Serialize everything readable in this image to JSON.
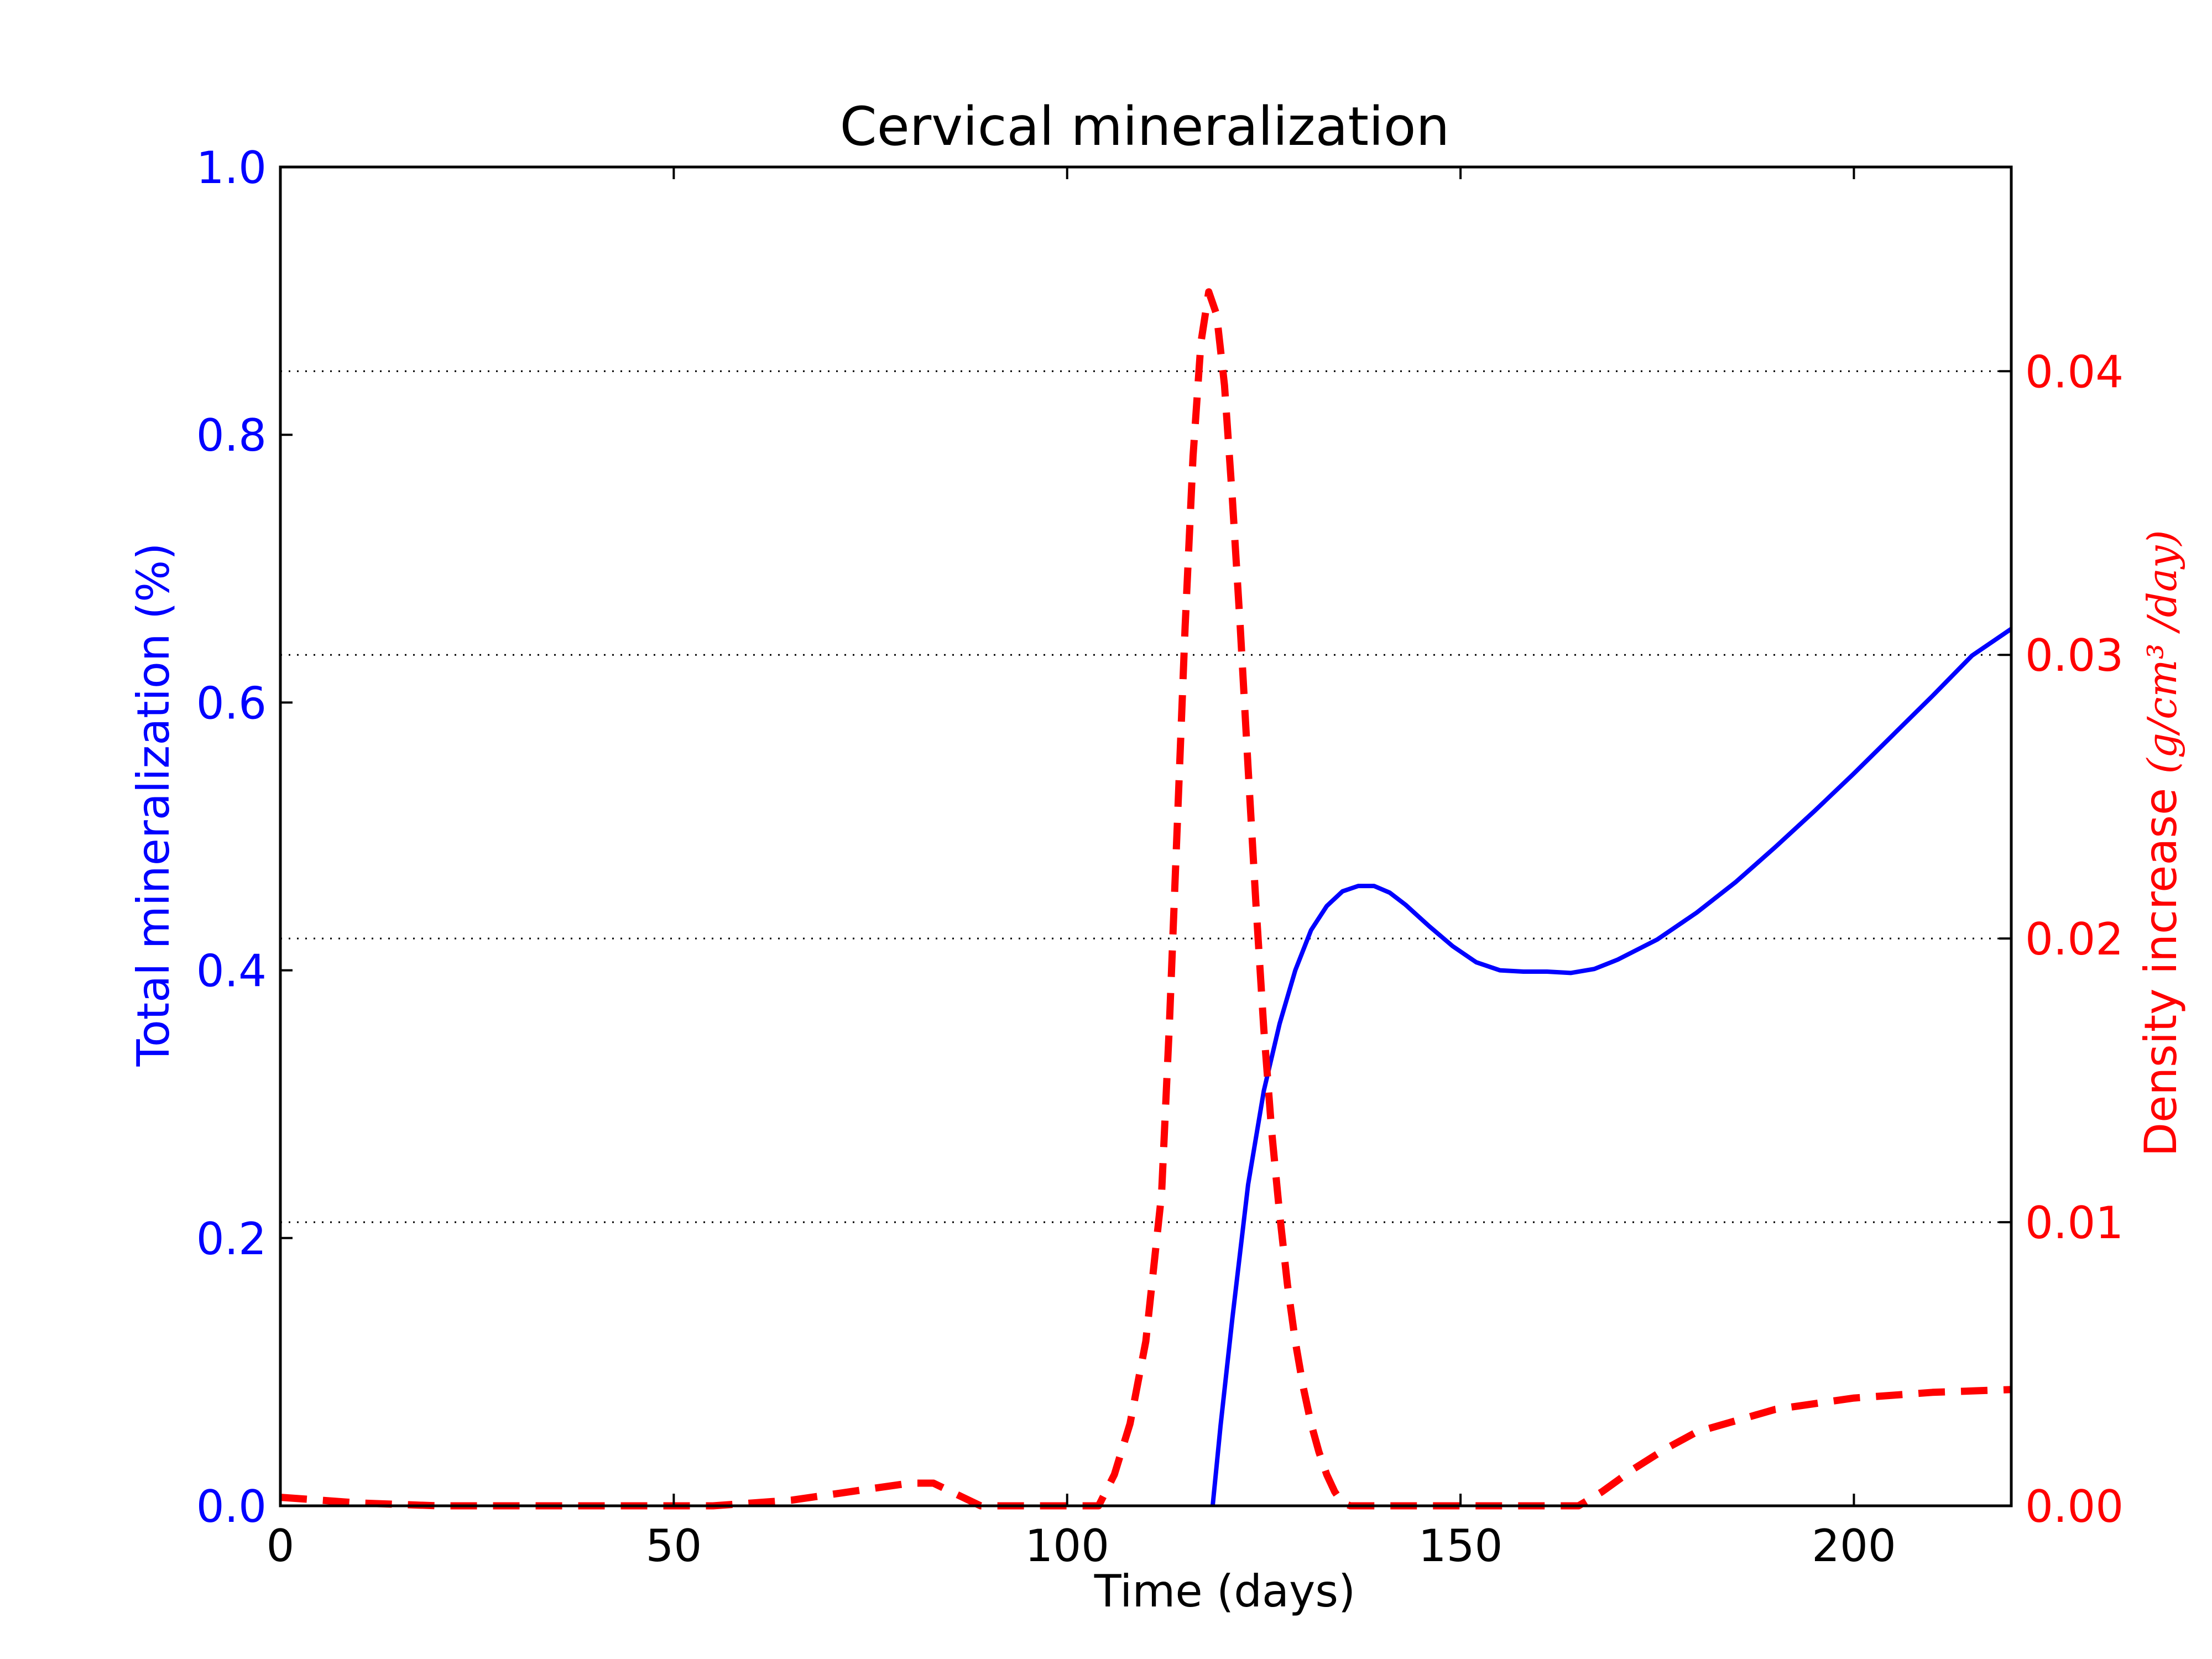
{
  "chart_data": {
    "type": "line",
    "title": "Cervical mineralization",
    "xlabel": "Time (days)",
    "ylabel": "Total mineralization (%)",
    "y2label": "Density increase ",
    "y2label_unit": "(g/cm³ /day)",
    "xlim": [
      0,
      220
    ],
    "ylim": [
      0,
      1.0
    ],
    "y2lim": [
      0,
      0.0472
    ],
    "x_ticks": [
      0,
      50,
      100,
      150,
      200
    ],
    "x_tick_labels": [
      "0",
      "50",
      "100",
      "150",
      "200"
    ],
    "y_ticks": [
      0,
      0.2,
      0.4,
      0.6,
      0.8,
      1.0
    ],
    "y_tick_labels": [
      "0.0",
      "0.2",
      "0.4",
      "0.6",
      "0.8",
      "1.0"
    ],
    "y2_ticks": [
      0,
      0.01,
      0.02,
      0.03,
      0.04
    ],
    "y2_tick_labels": [
      "0.00",
      "0.01",
      "0.02",
      "0.03",
      "0.04"
    ],
    "grid": "horizontal dotted at right-axis ticks",
    "colors": {
      "series1": "#0000ff",
      "series2": "#ff0000",
      "axes": "#000000",
      "grid": "#000000"
    },
    "series": [
      {
        "axis": "left",
        "style": "solid",
        "x": [
          118.5,
          119.5,
          121,
          123,
          125,
          127,
          129,
          131,
          133,
          135,
          137,
          139,
          141,
          143,
          146,
          149,
          152,
          155,
          158,
          161,
          164,
          167,
          170,
          175,
          180,
          185,
          190,
          195,
          200,
          205,
          210,
          215,
          220
        ],
        "y": [
          0.0,
          0.06,
          0.14,
          0.24,
          0.31,
          0.36,
          0.4,
          0.43,
          0.448,
          0.459,
          0.463,
          0.463,
          0.458,
          0.449,
          0.433,
          0.418,
          0.406,
          0.4,
          0.399,
          0.399,
          0.398,
          0.401,
          0.408,
          0.423,
          0.443,
          0.466,
          0.492,
          0.519,
          0.547,
          0.576,
          0.605,
          0.635,
          0.655
        ]
      },
      {
        "axis": "right",
        "style": "dashed",
        "x": [
          0,
          5,
          10,
          15,
          20,
          25,
          30,
          35,
          40,
          45,
          50,
          55,
          60,
          65,
          70,
          75,
          80,
          83,
          86,
          89,
          92,
          95,
          98,
          101,
          104,
          106,
          108,
          110,
          112,
          113,
          114,
          115,
          116,
          117,
          118,
          119,
          120,
          121,
          122,
          123,
          124,
          125,
          126,
          127,
          128,
          129,
          130,
          131,
          132,
          133,
          134,
          135,
          136,
          137,
          138,
          140,
          145,
          150,
          155,
          160,
          165,
          168,
          172,
          176,
          180,
          185,
          190,
          195,
          200,
          205,
          210,
          215,
          220
        ],
        "y": [
          0.0003,
          0.0002,
          0.0001,
          5e-05,
          0.0,
          0.0,
          0.0,
          0.0,
          0.0,
          0.0,
          0.0,
          0.0,
          0.0001,
          0.0002,
          0.0004,
          0.0006,
          0.0008,
          0.0008,
          0.0004,
          0.0,
          0.0,
          0.0,
          0.0,
          0.0,
          0.0,
          0.0011,
          0.0029,
          0.0058,
          0.011,
          0.017,
          0.024,
          0.031,
          0.037,
          0.041,
          0.0428,
          0.042,
          0.0395,
          0.0355,
          0.031,
          0.026,
          0.0212,
          0.0168,
          0.0132,
          0.0103,
          0.0078,
          0.0058,
          0.0042,
          0.0029,
          0.0019,
          0.0011,
          0.0005,
          0.0001,
          0.0,
          0.0,
          0.0,
          0.0,
          0.0,
          0.0,
          0.0,
          0.0,
          0.0,
          0.0005,
          0.0013,
          0.002,
          0.0026,
          0.003,
          0.0034,
          0.0036,
          0.0038,
          0.0039,
          0.004,
          0.00405,
          0.0041
        ]
      }
    ]
  }
}
